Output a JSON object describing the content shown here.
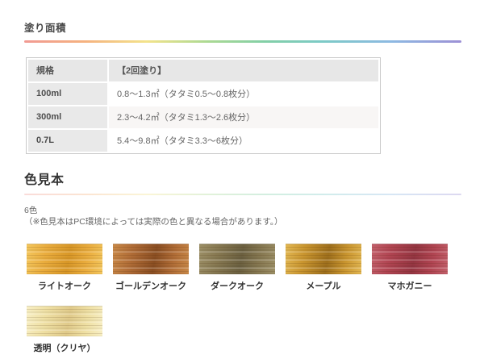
{
  "coating_section": {
    "title": "塗り面積",
    "table": {
      "header": {
        "spec": "規格",
        "coats": "【2回塗り】"
      },
      "rows": [
        {
          "spec": "100ml",
          "coverage": "0.8〜1.3㎡（タタミ0.5〜0.8枚分）"
        },
        {
          "spec": "300ml",
          "coverage": "2.3〜4.2㎡（タタミ1.3〜2.6枚分）"
        },
        {
          "spec": "0.7L",
          "coverage": "5.4〜9.8㎡（タタミ3.3〜6枚分）"
        }
      ]
    }
  },
  "color_section": {
    "title": "色見本",
    "count_label": "6色",
    "note": "（※色見本はPC環境によっては実際の色と異なる場合があります。）",
    "swatches": [
      {
        "row": 1,
        "label": "ライトオーク",
        "base": "#eaad3e",
        "light": "#f4c75e",
        "dark": "#d89727"
      },
      {
        "row": 1,
        "label": "ゴールデンオーク",
        "base": "#b06c36",
        "light": "#c98948",
        "dark": "#8a4e22"
      },
      {
        "row": 1,
        "label": "ダークオーク",
        "base": "#867851",
        "light": "#9c8f66",
        "dark": "#6b6040"
      },
      {
        "row": 1,
        "label": "メープル",
        "base": "#c9952f",
        "light": "#e3b853",
        "dark": "#9e6f1c"
      },
      {
        "row": 1,
        "label": "マホガニー",
        "base": "#b04451",
        "light": "#c3606b",
        "dark": "#943541"
      },
      {
        "row": 2,
        "label": "透明（クリヤ）",
        "base": "#efe0a4",
        "light": "#f8efc5",
        "dark": "#e0ca8a"
      }
    ]
  },
  "accent": {
    "gradient_stops": [
      "#f19a93",
      "#f5b27f",
      "#f3e38b",
      "#abd993",
      "#82cfa6",
      "#7ccac6",
      "#8db9e2",
      "#9c90d5"
    ]
  }
}
